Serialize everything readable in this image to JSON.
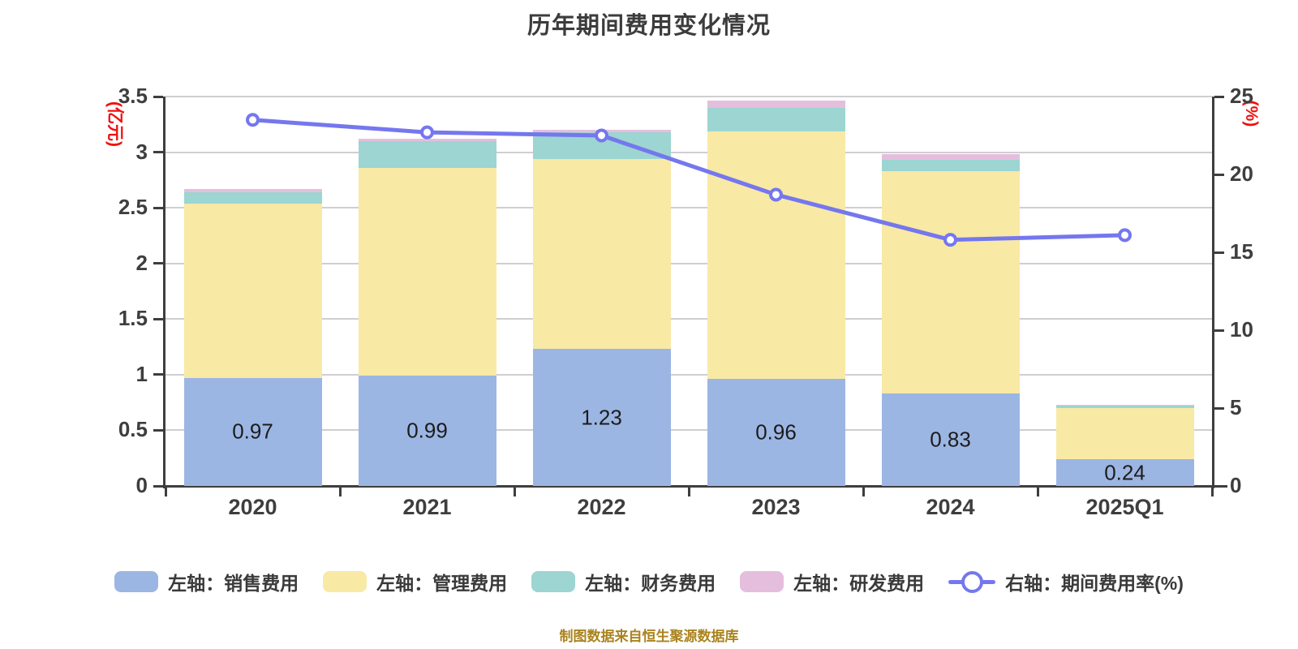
{
  "title": "历年期间费用变化情况",
  "caption": "制图数据来自恒生聚源数据库",
  "left_axis": {
    "name": "(亿元)",
    "color": "#ee1111",
    "ticks": [
      "0",
      "0.5",
      "1",
      "1.5",
      "2",
      "2.5",
      "3",
      "3.5"
    ]
  },
  "right_axis": {
    "name": "(%)",
    "color": "#ee1111",
    "ticks": [
      "0",
      "5",
      "10",
      "15",
      "20",
      "25"
    ]
  },
  "chart_data": {
    "type": "bar",
    "subtype": "stacked-bar-with-line",
    "categories": [
      "2020",
      "2021",
      "2022",
      "2023",
      "2024",
      "2025Q1"
    ],
    "series": [
      {
        "name": "左轴：销售费用",
        "type": "bar",
        "color": "#9cb6e3",
        "values": [
          0.97,
          0.99,
          1.23,
          0.96,
          0.83,
          0.24
        ]
      },
      {
        "name": "左轴：管理费用",
        "type": "bar",
        "color": "#f8e9a5",
        "values": [
          1.57,
          1.87,
          1.71,
          2.23,
          2.0,
          0.46
        ]
      },
      {
        "name": "左轴：财务费用",
        "type": "bar",
        "color": "#9cd5d1",
        "values": [
          0.1,
          0.24,
          0.24,
          0.21,
          0.1,
          0.02
        ]
      },
      {
        "name": "左轴：研发费用",
        "type": "bar",
        "color": "#e5bedd",
        "values": [
          0.03,
          0.02,
          0.02,
          0.06,
          0.05,
          0.01
        ]
      },
      {
        "name": "右轴：期间费用率(%)",
        "type": "line",
        "color": "#7577ee",
        "values": [
          23.5,
          22.7,
          22.5,
          18.7,
          15.8,
          16.1
        ]
      }
    ],
    "bar_labels": [
      "0.97",
      "0.99",
      "1.23",
      "0.96",
      "0.83",
      "0.24"
    ],
    "title": "历年期间费用变化情况",
    "xlabel": "",
    "ylabel_left": "(亿元)",
    "ylabel_right": "(%)",
    "left_ylim": [
      0,
      3.5
    ],
    "right_ylim": [
      0,
      25
    ],
    "grid": true,
    "legend_position": "bottom"
  }
}
